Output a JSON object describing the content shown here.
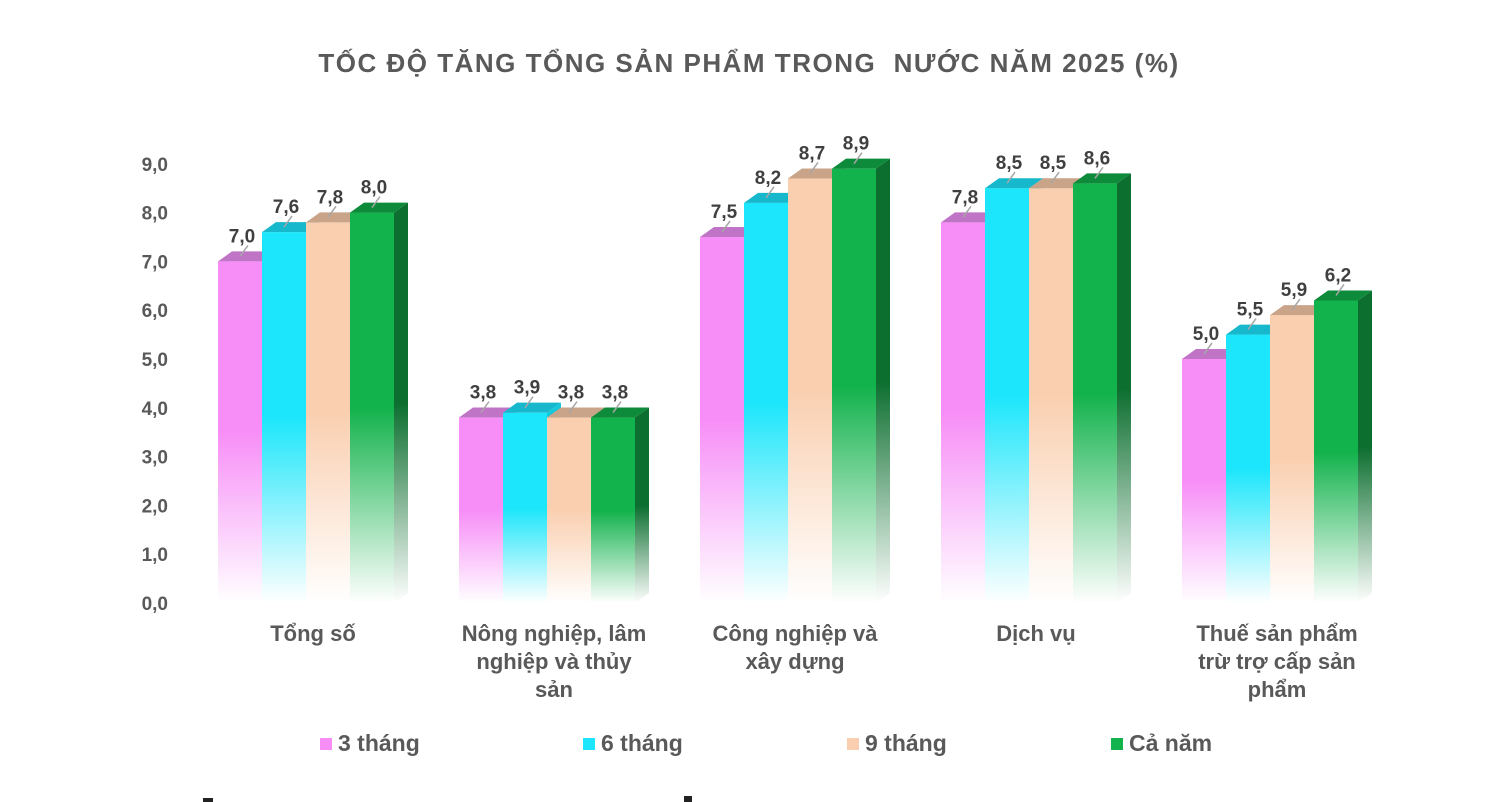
{
  "chart_data": {
    "type": "bar",
    "title": "TỐC ĐỘ TĂNG TỔNG SẢN PHẨM TRONG  NƯỚC NĂM 2025 (%)",
    "categories": [
      [
        "Tổng số"
      ],
      [
        "Nông nghiệp, lâm",
        "nghiệp và thủy",
        "sản"
      ],
      [
        "Công nghiệp và",
        "xây dựng"
      ],
      [
        "Dịch vụ"
      ],
      [
        "Thuế sản phẩm",
        "trừ trợ cấp sản",
        "phẩm"
      ]
    ],
    "series": [
      {
        "name": "3 tháng",
        "values": [
          7.0,
          3.8,
          7.5,
          7.8,
          5.0
        ],
        "labels": [
          "7,0",
          "3,8",
          "7,5",
          "7,8",
          "5,0"
        ]
      },
      {
        "name": "6 tháng",
        "values": [
          7.6,
          3.9,
          8.2,
          8.5,
          5.5
        ],
        "labels": [
          "7,6",
          "3,9",
          "8,2",
          "8,5",
          "5,5"
        ]
      },
      {
        "name": "9 tháng",
        "values": [
          7.8,
          3.8,
          8.7,
          8.5,
          5.9
        ],
        "labels": [
          "7,8",
          "3,8",
          "8,7",
          "8,5",
          "5,9"
        ]
      },
      {
        "name": "Cả năm",
        "values": [
          8.0,
          3.8,
          8.9,
          8.6,
          6.2
        ],
        "labels": [
          "8,0",
          "3,8",
          "8,9",
          "8,6",
          "6,2"
        ]
      }
    ],
    "ylim": [
      0,
      9
    ],
    "yticks": [
      "0,0",
      "1,0",
      "2,0",
      "3,0",
      "4,0",
      "5,0",
      "6,0",
      "7,0",
      "8,0",
      "9,0"
    ],
    "grid": false,
    "legend_position": "bottom",
    "colors": {
      "3 tháng": {
        "main": "#F78EF7",
        "top": "#C074C6",
        "side": "#D57BD8"
      },
      "6 tháng": {
        "main": "#1CE6FB",
        "top": "#17B7CC",
        "side": "#16C8DC"
      },
      "9 tháng": {
        "main": "#FACFB0",
        "top": "#C9A489",
        "side": "#E5B99A"
      },
      "Cả năm": {
        "main": "#12B24C",
        "top": "#0E8A3B",
        "side": "#0C6E2F"
      }
    }
  }
}
